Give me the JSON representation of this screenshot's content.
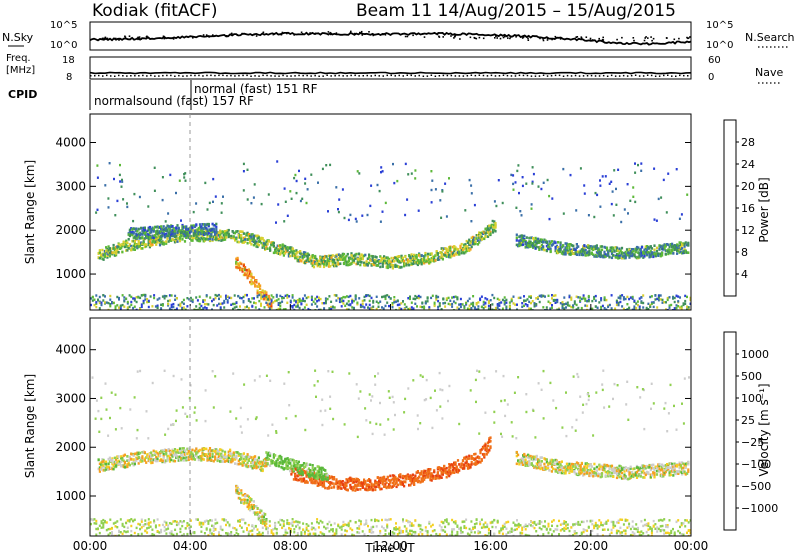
{
  "header": {
    "station": "Kodiak (fitACF)",
    "beam_range": "Beam 11  14/Aug/2015 – 15/Aug/2015"
  },
  "top_panels": {
    "nsky_label": "N.Sky",
    "nsearch_label": "N.Search",
    "counts_ticks": [
      "10^5",
      "10^0"
    ],
    "freq_label": "Freq.",
    "freq_unit": "[MHz]",
    "freq_ticks": [
      "18",
      "8"
    ],
    "nave_label": "Nave",
    "nave_ticks": [
      "60",
      "0"
    ],
    "cpid_label": "CPID",
    "cpid_segments": [
      {
        "label": "normalsound (fast) 157 RF",
        "start_hour": 0.0,
        "end_hour": 4.0
      },
      {
        "label": "normal (fast)  151 RF",
        "start_hour": 4.0,
        "end_hour": 24.0
      }
    ]
  },
  "power_colorbar": {
    "label": "Power [dB]",
    "ticks": [
      "4",
      "8",
      "12",
      "16",
      "20",
      "24",
      "28"
    ],
    "colors": [
      "#1b1bff",
      "#2a3fd6",
      "#3a6fa8",
      "#3f8f5a",
      "#5cb838",
      "#d8d030",
      "#f5a020",
      "#f07018",
      "#e83a10",
      "#e00000"
    ]
  },
  "velocity_colorbar": {
    "label": "Velocity [m s⁻¹]",
    "ticks": [
      "1000",
      "500",
      "100",
      "25",
      "−25",
      "−100",
      "−500",
      "−1000"
    ],
    "colors": [
      "#2030d0",
      "#3a66a8",
      "#3f8a58",
      "#5ab83a",
      "#90d050",
      "#cccccc",
      "#f5d020",
      "#f5a020",
      "#f07018",
      "#e84010",
      "#e00000"
    ]
  },
  "chart_data": [
    {
      "type": "heatmap",
      "panel": "power",
      "ylabel": "Slant Range [km]",
      "xlabel": "Time UT",
      "xlim": [
        0,
        24
      ],
      "ylim": [
        180,
        4650
      ],
      "y_ticks": [
        1000,
        2000,
        3000,
        4000
      ],
      "x_tick_labels": [
        "00:00",
        "04:00",
        "08:00",
        "12:00",
        "16:00",
        "20:00",
        "00:00"
      ],
      "features": [
        {
          "name": "Echo band",
          "points": [
            [
              0.3,
              1450
            ],
            [
              1.5,
              1680
            ],
            [
              3.5,
              1900
            ],
            [
              5.5,
              1920
            ],
            [
              6.3,
              1850
            ],
            [
              7.5,
              1600
            ],
            [
              9.0,
              1300
            ],
            [
              10.5,
              1380
            ],
            [
              12.0,
              1280
            ],
            [
              13.5,
              1400
            ],
            [
              15.0,
              1650
            ],
            [
              16.2,
              2150
            ]
          ],
          "value": 14
        },
        {
          "name": "Upper diffuse",
          "points": [
            [
              1.5,
              1950
            ],
            [
              3.0,
              2000
            ],
            [
              5.0,
              2050
            ]
          ],
          "value": 10
        },
        {
          "name": "Late-day echoes",
          "points": [
            [
              17.0,
              1800
            ],
            [
              19.0,
              1600
            ],
            [
              21.5,
              1500
            ],
            [
              22.5,
              1550
            ],
            [
              23.9,
              1650
            ]
          ],
          "value": 11
        },
        {
          "name": "Descending patch",
          "points": [
            [
              5.8,
              1300
            ],
            [
              6.3,
              1000
            ],
            [
              6.8,
              600
            ],
            [
              7.2,
              350
            ]
          ],
          "value": 20
        }
      ]
    },
    {
      "type": "heatmap",
      "panel": "velocity",
      "ylabel": "Slant Range [km]",
      "xlabel": "Time UT",
      "xlim": [
        0,
        24
      ],
      "ylim": [
        180,
        4650
      ],
      "y_ticks": [
        1000,
        2000,
        3000,
        4000
      ],
      "x_tick_labels": [
        "00:00",
        "04:00",
        "08:00",
        "12:00",
        "16:00",
        "20:00",
        "00:00"
      ],
      "features": [
        {
          "name": "Ground scatter band",
          "points": [
            [
              0.3,
              1650
            ],
            [
              2.0,
              1800
            ],
            [
              4.0,
              1900
            ],
            [
              5.5,
              1850
            ],
            [
              7.0,
              1650
            ]
          ],
          "value": 0
        },
        {
          "name": "Receding flow",
          "points": [
            [
              8.0,
              1500
            ],
            [
              9.5,
              1300
            ],
            [
              11.0,
              1250
            ],
            [
              12.5,
              1350
            ],
            [
              14.0,
              1500
            ],
            [
              15.5,
              1800
            ],
            [
              16.0,
              2150
            ]
          ],
          "value": -300
        },
        {
          "name": "Approaching flow",
          "points": [
            [
              7.0,
              1800
            ],
            [
              8.0,
              1650
            ],
            [
              9.5,
              1450
            ]
          ],
          "value": 150
        },
        {
          "name": "Late ground scatter",
          "points": [
            [
              17.0,
              1800
            ],
            [
              19.0,
              1600
            ],
            [
              21.5,
              1500
            ],
            [
              23.9,
              1600
            ]
          ],
          "value": 0
        },
        {
          "name": "Ground patch",
          "points": [
            [
              5.8,
              1100
            ],
            [
              6.5,
              800
            ],
            [
              7.0,
              500
            ]
          ],
          "value": 0
        }
      ]
    }
  ]
}
